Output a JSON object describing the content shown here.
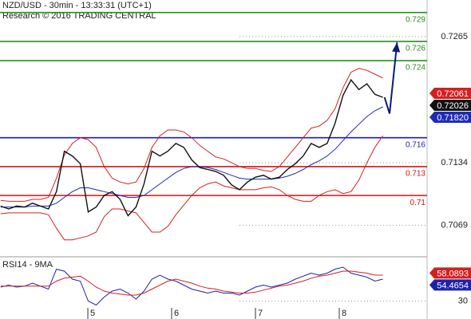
{
  "chart_data": [
    {
      "type": "line",
      "title": "NZD/USD - 30min - 13:33:31 (UTC+1)",
      "subtitle": "Research © 2016 TRADING CENTRAL",
      "x": [
        3.96,
        4.055,
        4.15,
        4.245,
        4.34,
        4.435,
        4.53,
        4.625,
        4.72,
        4.815,
        4.91,
        5.005,
        5.1,
        5.195,
        5.29,
        5.385,
        5.48,
        5.575,
        5.67,
        5.765,
        5.86,
        5.955,
        6.05,
        6.145,
        6.24,
        6.335,
        6.43,
        6.525,
        6.62,
        6.715,
        6.81,
        6.905,
        7.0,
        7.095,
        7.19,
        7.285,
        7.38,
        7.475,
        7.57,
        7.665,
        7.76,
        7.855,
        7.95,
        8.045,
        8.14,
        8.235,
        8.33,
        8.425,
        8.52
      ],
      "series": [
        {
          "name": "Upper band",
          "color": "#d42020",
          "values": [
            0.7095,
            0.7094,
            0.7094,
            0.7094,
            0.7096,
            0.7096,
            0.7098,
            0.7118,
            0.7142,
            0.7154,
            0.716,
            0.7158,
            0.715,
            0.713,
            0.7118,
            0.7114,
            0.7112,
            0.7114,
            0.7128,
            0.715,
            0.7162,
            0.7168,
            0.7168,
            0.7166,
            0.716,
            0.7152,
            0.7146,
            0.714,
            0.7138,
            0.7134,
            0.713,
            0.7128,
            0.7128,
            0.7126,
            0.7125,
            0.713,
            0.714,
            0.715,
            0.716,
            0.717,
            0.7172,
            0.7178,
            0.719,
            0.7212,
            0.7228,
            0.7232,
            0.723,
            0.7226,
            0.7222
          ]
        },
        {
          "name": "Lower band",
          "color": "#d42020",
          "values": [
            0.7081,
            0.7082,
            0.7082,
            0.7082,
            0.7082,
            0.7082,
            0.708,
            0.7066,
            0.7054,
            0.7054,
            0.7056,
            0.7058,
            0.7062,
            0.7078,
            0.7086,
            0.7086,
            0.7084,
            0.7082,
            0.7072,
            0.7062,
            0.7062,
            0.7068,
            0.708,
            0.709,
            0.71,
            0.7108,
            0.7112,
            0.7114,
            0.711,
            0.7108,
            0.7106,
            0.7106,
            0.7106,
            0.7108,
            0.7109,
            0.7106,
            0.71,
            0.7096,
            0.7094,
            0.7094,
            0.71,
            0.7104,
            0.7106,
            0.7102,
            0.7104,
            0.7116,
            0.7134,
            0.715,
            0.7162
          ]
        },
        {
          "name": "Moving average",
          "color": "#1f2bb5",
          "values": [
            0.7088,
            0.7088,
            0.7088,
            0.7088,
            0.7089,
            0.7089,
            0.7089,
            0.7092,
            0.7098,
            0.7104,
            0.7108,
            0.7108,
            0.7106,
            0.7104,
            0.7102,
            0.71,
            0.7098,
            0.7098,
            0.71,
            0.7106,
            0.7112,
            0.7118,
            0.7124,
            0.7128,
            0.713,
            0.713,
            0.7129,
            0.7127,
            0.7124,
            0.7121,
            0.7118,
            0.7117,
            0.7117,
            0.7117,
            0.7117,
            0.7118,
            0.712,
            0.7123,
            0.7127,
            0.7132,
            0.7136,
            0.7141,
            0.7148,
            0.7157,
            0.7166,
            0.7174,
            0.7182,
            0.7188,
            0.7192
          ]
        },
        {
          "name": "Close",
          "color": "#111111",
          "values": [
            0.7089,
            0.7086,
            0.7089,
            0.7088,
            0.7092,
            0.7089,
            0.7086,
            0.7104,
            0.7146,
            0.7141,
            0.7133,
            0.7083,
            0.7088,
            0.71,
            0.7104,
            0.7096,
            0.7079,
            0.7088,
            0.7112,
            0.7146,
            0.7141,
            0.7146,
            0.7154,
            0.715,
            0.7137,
            0.7129,
            0.7127,
            0.7125,
            0.7121,
            0.7111,
            0.7106,
            0.7114,
            0.7119,
            0.7121,
            0.7117,
            0.7119,
            0.7127,
            0.7133,
            0.7141,
            0.7154,
            0.715,
            0.7154,
            0.7175,
            0.7204,
            0.722,
            0.721,
            0.7216,
            0.7205,
            0.7202
          ]
        }
      ],
      "levels": [
        {
          "value": 0.729,
          "color": "#2e8b22"
        },
        {
          "value": 0.726,
          "color": "#2e8b22"
        },
        {
          "value": 0.724,
          "color": "#2e8b22"
        },
        {
          "value": 0.716,
          "color": "#1a1acc"
        },
        {
          "value": 0.713,
          "color": "#d41414"
        },
        {
          "value": 0.71,
          "color": "#d41414"
        }
      ],
      "price_tags": [
        {
          "value": 0.72061,
          "color": "#d42020"
        },
        {
          "value": 0.72026,
          "color": "#111111"
        },
        {
          "value": 0.7182,
          "label": "0.71820",
          "color": "#1f2bb5"
        }
      ],
      "forecast": {
        "color": "#0c1a7a",
        "x": [
          8.54,
          8.6,
          8.69
        ],
        "values": [
          0.7202,
          0.7185,
          0.7259
        ]
      },
      "xlim": [
        3.952,
        9.048
      ],
      "ylim": [
        0.7038,
        0.7303
      ],
      "yticks": [
        0.7265,
        0.7134,
        0.7069
      ],
      "grid": true
    },
    {
      "type": "line",
      "title": "RSI14 - 9MA",
      "x": [
        3.96,
        4.055,
        4.15,
        4.245,
        4.34,
        4.435,
        4.53,
        4.625,
        4.72,
        4.815,
        4.91,
        5.005,
        5.1,
        5.195,
        5.29,
        5.385,
        5.48,
        5.575,
        5.67,
        5.765,
        5.86,
        5.955,
        6.05,
        6.145,
        6.24,
        6.335,
        6.43,
        6.525,
        6.62,
        6.715,
        6.81,
        6.905,
        7.0,
        7.095,
        7.19,
        7.285,
        7.38,
        7.475,
        7.57,
        7.665,
        7.76,
        7.855,
        7.95,
        8.045,
        8.14,
        8.235,
        8.33,
        8.425,
        8.52
      ],
      "series": [
        {
          "name": "RSI14",
          "color": "#1e22a8",
          "values": [
            44,
            46,
            44,
            45,
            48,
            45,
            42,
            62,
            60,
            52,
            50,
            30,
            26,
            34,
            40,
            42,
            38,
            32,
            40,
            52,
            56,
            52,
            50,
            46,
            42,
            40,
            38,
            40,
            38,
            38,
            36,
            40,
            44,
            46,
            44,
            46,
            48,
            52,
            55,
            58,
            56,
            58,
            62,
            64,
            58,
            56,
            54,
            50,
            52
          ]
        },
        {
          "name": "9MA",
          "color": "#d42020",
          "values": [
            45,
            45,
            45,
            45,
            45,
            45,
            45,
            50,
            53,
            54,
            55,
            50,
            44,
            40,
            38,
            37,
            36,
            36,
            38,
            42,
            46,
            50,
            52,
            50,
            48,
            45,
            43,
            42,
            40,
            39,
            38,
            38,
            39,
            41,
            43,
            45,
            46,
            48,
            50,
            53,
            55,
            56,
            58,
            60,
            60,
            59,
            58,
            56,
            56
          ]
        }
      ],
      "value_tags": [
        {
          "value": 58.0893,
          "color": "#d42020"
        },
        {
          "value": 54.4654,
          "color": "#1e22a8"
        }
      ],
      "xlim": [
        3.952,
        9.048
      ],
      "ylim": [
        16,
        72
      ],
      "yticks": [
        30
      ],
      "xticks": [
        5,
        6,
        7,
        8
      ],
      "grid": true
    }
  ]
}
